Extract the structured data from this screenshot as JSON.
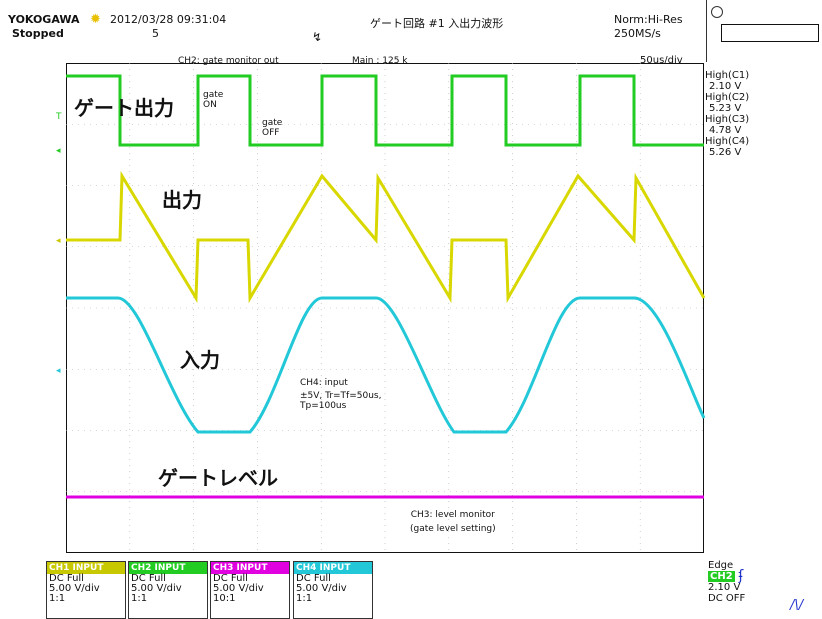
{
  "header": {
    "brand": "YOKOGAWA",
    "datetime": "2012/03/28 09:31:04",
    "status": "Stopped",
    "count": "5",
    "title": "ゲート回路 #1 入出力波形",
    "mode": "Norm:Hi-Res",
    "rate": "250MS/s",
    "timebase": "50us/div"
  },
  "screen": {
    "ch2_note": "CH2: gate monitor out",
    "main_note": "Main : 125 k",
    "gate_on": [
      "gate",
      "ON"
    ],
    "gate_off": [
      "gate",
      "OFF"
    ],
    "label_gate_out": "ゲート出力",
    "label_output": "出力",
    "label_input": "入力",
    "label_gate_level": "ゲートレベル",
    "ch4_note": [
      "CH4: input",
      "±5V, Tr=Tf=50us,",
      "Tp=100us"
    ],
    "ch3_note": [
      "CH3: level monitor",
      "(gate level setting)"
    ]
  },
  "measurements": [
    {
      "label": "High(C1)",
      "value": "2.10 V"
    },
    {
      "label": "High(C2)",
      "value": "5.23 V"
    },
    {
      "label": "High(C3)",
      "value": "4.78 V"
    },
    {
      "label": "High(C4)",
      "value": "5.26 V"
    }
  ],
  "channels": [
    {
      "head": "CH1 INPUT",
      "color": "#c8c800",
      "coupling": "DC Full",
      "scale": "5.00 V/div",
      "probe": "1:1"
    },
    {
      "head": "CH2 INPUT",
      "color": "#00c800",
      "coupling": "DC Full",
      "scale": "5.00 V/div",
      "probe": "1:1"
    },
    {
      "head": "CH3 INPUT",
      "color": "#e000e0",
      "coupling": "DC Full",
      "scale": "5.00 V/div",
      "probe": "10:1"
    },
    {
      "head": "CH4 INPUT",
      "color": "#00c8d8",
      "coupling": "DC Full",
      "scale": "5.00 V/div",
      "probe": "1:1"
    }
  ],
  "trigger": {
    "type": "Edge",
    "source": "CH2",
    "level": "2.10 V",
    "hf": "DC OFF"
  },
  "colors": {
    "ch1": "#d8d800",
    "ch2": "#22cc22",
    "ch3": "#e000e0",
    "ch4": "#22c8d8",
    "grid": "#b0b0b0"
  }
}
